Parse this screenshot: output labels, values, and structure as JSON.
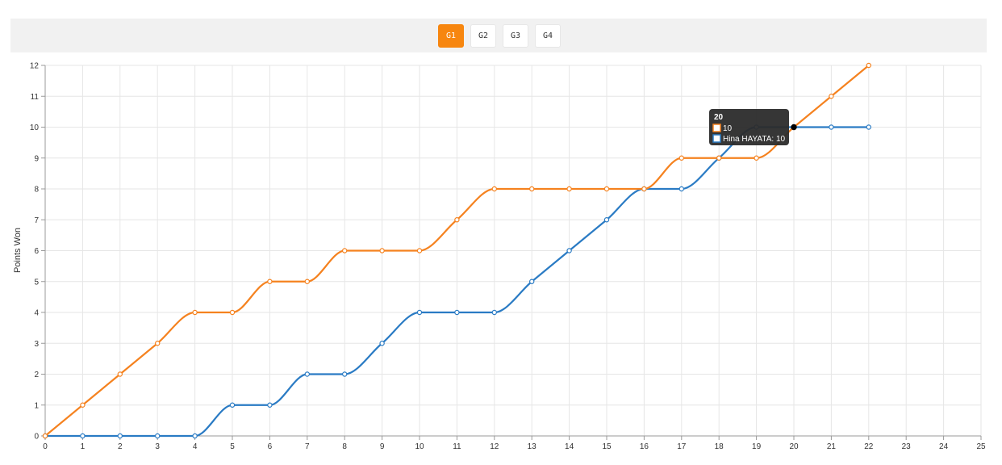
{
  "tabs": [
    {
      "label": "G1",
      "active": true
    },
    {
      "label": "G2",
      "active": false
    },
    {
      "label": "G3",
      "active": false
    },
    {
      "label": "G4",
      "active": false
    }
  ],
  "colors": {
    "accent": "#f7860f",
    "series_orange": "#f5821f",
    "series_blue": "#2a7bc4",
    "tooltip_bg": "#2b2b2b"
  },
  "chart_data": {
    "type": "line",
    "xlabel": "",
    "ylabel": "Points Won",
    "xlim": [
      0,
      25
    ],
    "ylim": [
      0,
      12
    ],
    "grid": true,
    "x": [
      0,
      1,
      2,
      3,
      4,
      5,
      6,
      7,
      8,
      9,
      10,
      11,
      12,
      13,
      14,
      15,
      16,
      17,
      18,
      19,
      20,
      21,
      22
    ],
    "series": [
      {
        "name": "",
        "color": "#f5821f",
        "values": [
          0,
          1,
          2,
          3,
          4,
          4,
          5,
          5,
          6,
          6,
          6,
          7,
          8,
          8,
          8,
          8,
          8,
          9,
          9,
          9,
          10,
          11,
          12
        ]
      },
      {
        "name": "Hina HAYATA",
        "color": "#2a7bc4",
        "values": [
          0,
          0,
          0,
          0,
          0,
          1,
          1,
          2,
          2,
          3,
          4,
          4,
          4,
          5,
          6,
          7,
          8,
          8,
          9,
          10,
          10,
          10,
          10
        ]
      }
    ],
    "tooltip": {
      "title": "20",
      "lines": [
        "10",
        "Hina HAYATA: 10"
      ]
    }
  }
}
